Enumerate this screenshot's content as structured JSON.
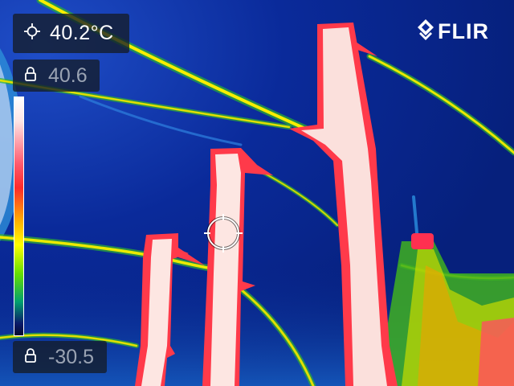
{
  "camera": {
    "spot_temperature": "40.2°C",
    "scale_max": "40.6",
    "scale_min": "-30.5",
    "brand": "FLIR"
  },
  "icons": {
    "spot_meter": "crosshair-icon",
    "scale_lock_max": "lock-icon",
    "scale_lock_min": "lock-icon",
    "logo": "flir-logo"
  },
  "palette": {
    "hot": "#fde8e8",
    "red": "#ff3045",
    "yellow": "#f4f000",
    "green": "#40c000",
    "cold": "#0a2a9a"
  }
}
